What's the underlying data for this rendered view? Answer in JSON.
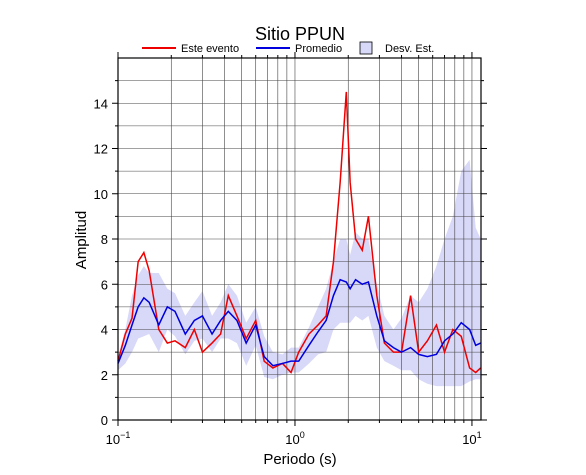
{
  "chart_data": {
    "type": "line",
    "title": "Sitio PPUN",
    "xlabel": "Periodo (s)",
    "ylabel": "Amplitud",
    "xscale": "log",
    "grid": true,
    "legend": "top",
    "xlim": [
      0.1,
      11.25
    ],
    "ylim": [
      0,
      16
    ],
    "xticks": [
      {
        "value": 0.1,
        "label": "10",
        "exponent": "−1"
      },
      {
        "value": 1,
        "label": "10",
        "exponent": "0"
      },
      {
        "value": 10,
        "label": "10",
        "exponent": "1"
      }
    ],
    "xminor": [
      0.2,
      0.3,
      0.4,
      0.5,
      0.6,
      0.7,
      0.8,
      0.9,
      2,
      3,
      4,
      5,
      6,
      7,
      8,
      9
    ],
    "yticks": [
      0,
      2,
      4,
      6,
      8,
      10,
      12,
      14
    ],
    "yminor": [
      1,
      3,
      5,
      7,
      9,
      11,
      13,
      15
    ],
    "x": [
      0.1,
      0.11,
      0.12,
      0.13,
      0.14,
      0.15,
      0.17,
      0.19,
      0.21,
      0.24,
      0.27,
      0.3,
      0.34,
      0.38,
      0.42,
      0.47,
      0.53,
      0.6,
      0.67,
      0.75,
      0.85,
      0.95,
      1.05,
      1.2,
      1.35,
      1.5,
      1.65,
      1.8,
      1.95,
      2.05,
      2.2,
      2.4,
      2.6,
      2.9,
      3.2,
      3.6,
      4.0,
      4.5,
      5.0,
      5.6,
      6.3,
      7.0,
      7.8,
      8.7,
      9.7,
      10.5,
      11.2
    ],
    "band": {
      "name": "Desv. Est.",
      "color": "#d8d8f8",
      "lower": [
        2.2,
        2.5,
        3.0,
        3.6,
        3.7,
        3.8,
        3.0,
        4.0,
        3.7,
        2.9,
        3.5,
        3.6,
        3.0,
        3.6,
        3.6,
        3.4,
        2.4,
        3.3,
        1.9,
        1.8,
        2.0,
        2.1,
        2.1,
        2.5,
        2.9,
        3.0,
        4.0,
        4.3,
        4.3,
        4.3,
        4.6,
        4.4,
        4.6,
        3.2,
        2.6,
        2.4,
        2.2,
        2.2,
        1.8,
        1.6,
        1.5,
        1.5,
        1.5,
        1.5,
        1.7,
        1.8,
        1.8
      ],
      "upper": [
        2.8,
        4.0,
        5.5,
        6.4,
        6.8,
        6.5,
        6.5,
        5.8,
        5.6,
        4.6,
        5.2,
        5.7,
        4.6,
        5.2,
        6.0,
        5.5,
        4.3,
        5.0,
        3.7,
        3.0,
        2.9,
        3.2,
        3.2,
        4.1,
        5.0,
        5.8,
        7.0,
        8.0,
        8.0,
        7.3,
        8.3,
        8.0,
        8.0,
        6.0,
        4.6,
        4.0,
        4.5,
        5.5,
        5.2,
        5.8,
        6.8,
        8.0,
        9.0,
        11.0,
        11.5,
        8.5,
        8.0
      ]
    },
    "series": [
      {
        "name": "Este evento",
        "color": "#ee0000",
        "values": [
          2.6,
          3.8,
          4.5,
          7.0,
          7.4,
          6.6,
          4.0,
          3.4,
          3.5,
          3.2,
          4.0,
          3.0,
          3.4,
          3.8,
          5.5,
          4.6,
          3.6,
          4.4,
          2.6,
          2.3,
          2.5,
          2.1,
          3.0,
          3.8,
          4.2,
          4.6,
          7.0,
          10.5,
          14.5,
          10.5,
          8.0,
          7.5,
          9.0,
          5.5,
          3.4,
          3.0,
          3.0,
          5.5,
          3.0,
          3.5,
          4.2,
          3.0,
          4.0,
          3.7,
          2.3,
          2.1,
          2.3
        ]
      },
      {
        "name": "Promedio",
        "color": "#0000dd",
        "values": [
          2.5,
          3.3,
          4.2,
          5.0,
          5.4,
          5.2,
          4.2,
          5.0,
          4.8,
          3.8,
          4.4,
          4.6,
          3.8,
          4.4,
          4.8,
          4.4,
          3.4,
          4.2,
          2.8,
          2.4,
          2.5,
          2.6,
          2.6,
          3.3,
          3.9,
          4.4,
          5.5,
          6.2,
          6.1,
          5.8,
          6.2,
          6.0,
          6.1,
          4.6,
          3.5,
          3.2,
          3.0,
          3.2,
          2.9,
          2.8,
          2.9,
          3.5,
          3.8,
          4.3,
          4.0,
          3.3,
          3.4
        ]
      }
    ]
  }
}
